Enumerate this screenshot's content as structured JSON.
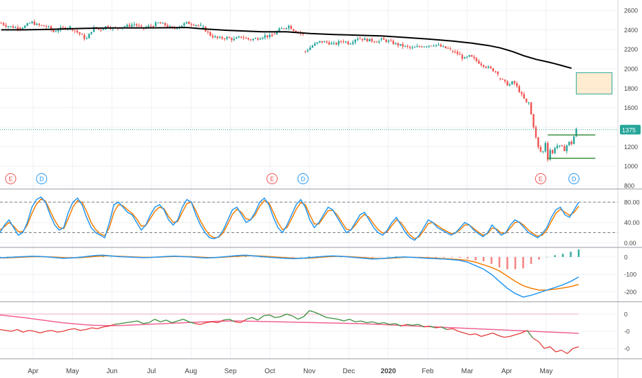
{
  "colors": {
    "up": "#26a69a",
    "down": "#ef5350",
    "ma": "#000000",
    "stoch_k": "#2196f3",
    "stoch_d": "#f57c00",
    "macd": "#2196f3",
    "signal": "#f57c00",
    "rel_up": "#388e3c",
    "rel_down": "#e53935",
    "rel_avg": "#f06292",
    "grid": "#eef0f4",
    "axis_text": "#444444",
    "price_tag": "#26a69a"
  },
  "chart_data": [
    {
      "type": "candlestick",
      "panel": "price",
      "ylim": [
        800,
        2650
      ],
      "yticks": [
        "2600",
        "2400",
        "2200",
        "2000",
        "1800",
        "1600",
        "1400",
        "1200",
        "1000",
        "800"
      ],
      "last_price_label": "1375",
      "last_price": 1375,
      "overlay_ma": [
        [
          0,
          2400
        ],
        [
          10,
          2400
        ],
        [
          20,
          2405
        ],
        [
          30,
          2412
        ],
        [
          40,
          2418
        ],
        [
          50,
          2420
        ],
        [
          60,
          2420
        ],
        [
          70,
          2421
        ],
        [
          78,
          2424
        ],
        [
          85,
          2410
        ],
        [
          95,
          2395
        ],
        [
          110,
          2380
        ],
        [
          120,
          2380
        ],
        [
          130,
          2362
        ],
        [
          140,
          2352
        ],
        [
          150,
          2345
        ],
        [
          160,
          2337
        ],
        [
          170,
          2322
        ],
        [
          180,
          2305
        ],
        [
          190,
          2285
        ],
        [
          198,
          2264
        ],
        [
          205,
          2239
        ],
        [
          210,
          2214
        ],
        [
          215,
          2178
        ],
        [
          220,
          2133
        ],
        [
          225,
          2097
        ],
        [
          230,
          2070
        ],
        [
          233,
          2052
        ],
        [
          236,
          2032
        ],
        [
          240,
          2005
        ]
      ],
      "ohlc_segments": [
        {
          "from": 0,
          "to": 8,
          "trend": [
            2470,
            2440,
            2430,
            2420
          ]
        },
        {
          "from": 8,
          "to": 30,
          "trend": [
            2420,
            2440,
            2480,
            2450,
            2440,
            2430,
            2380,
            2410,
            2420,
            2430
          ]
        },
        {
          "from": 30,
          "to": 60,
          "trend": [
            2410,
            2360,
            2300,
            2420,
            2400,
            2440,
            2410,
            2430,
            2440,
            2460,
            2420
          ]
        },
        {
          "from": 60,
          "to": 85,
          "trend": [
            2420,
            2440,
            2470,
            2450,
            2410,
            2440,
            2470,
            2460,
            2440
          ]
        },
        {
          "from": 85,
          "to": 115,
          "trend": [
            2420,
            2340,
            2310,
            2320,
            2300,
            2330,
            2300,
            2310,
            2340,
            2330
          ]
        },
        {
          "from": 115,
          "to": 128,
          "trend": [
            2360,
            2400,
            2420,
            2440,
            2400,
            2380,
            2350
          ]
        },
        {
          "from": 128,
          "to": 160,
          "trend": [
            2180,
            2240,
            2280,
            2270,
            2250,
            2290,
            2260,
            2320,
            2300,
            2290,
            2280
          ]
        },
        {
          "from": 160,
          "to": 190,
          "trend": [
            2300,
            2280,
            2250,
            2230,
            2210,
            2230,
            2240,
            2250,
            2220,
            2200
          ]
        },
        {
          "from": 190,
          "to": 210,
          "trend": [
            2180,
            2150,
            2100,
            2130,
            2090,
            2050,
            2020,
            1990,
            1960
          ]
        },
        {
          "from": 210,
          "to": 222,
          "trend": [
            1900,
            1860,
            1830,
            1870,
            1800,
            1720,
            1650
          ]
        },
        {
          "from": 222,
          "to": 228,
          "trend": [
            1650,
            1500,
            1350,
            1200,
            1150
          ]
        },
        {
          "from": 228,
          "to": 243,
          "trend": [
            1150,
            1250,
            1050,
            1200,
            1100,
            1250,
            1180,
            1220,
            1150,
            1200,
            1250,
            1220,
            1300,
            1375
          ]
        }
      ],
      "earnings_markers": [
        {
          "label": "E",
          "bar": 4
        },
        {
          "label": "D",
          "bar": 17
        },
        {
          "label": "E",
          "bar": 114
        },
        {
          "label": "D",
          "bar": 127
        },
        {
          "label": "E",
          "bar": 227
        },
        {
          "label": "D",
          "bar": 241
        }
      ],
      "range_box": {
        "top": 1320,
        "bottom": 1080,
        "from_bar": 230,
        "to_bar": 250
      },
      "target_box": {
        "top": 1960,
        "bottom": 1740,
        "from_bar": 242,
        "to_bar": 257
      }
    },
    {
      "type": "line",
      "panel": "stochastic",
      "ylim": [
        -5,
        95
      ],
      "yticks": [
        "80.00",
        "40.00",
        "0.00"
      ],
      "levels": [
        80,
        20
      ],
      "series": [
        {
          "role": "k",
          "values": [
            20,
            35,
            45,
            30,
            15,
            20,
            40,
            70,
            85,
            90,
            80,
            55,
            35,
            25,
            30,
            60,
            80,
            88,
            75,
            50,
            30,
            20,
            15,
            10,
            40,
            75,
            80,
            70,
            60,
            55,
            40,
            25,
            35,
            55,
            70,
            75,
            65,
            45,
            35,
            45,
            70,
            85,
            80,
            55,
            35,
            20,
            10,
            8,
            12,
            25,
            45,
            65,
            70,
            55,
            40,
            45,
            60,
            80,
            88,
            75,
            50,
            30,
            20,
            35,
            55,
            75,
            85,
            70,
            45,
            30,
            40,
            55,
            70,
            65,
            50,
            35,
            20,
            25,
            40,
            55,
            60,
            45,
            30,
            20,
            15,
            25,
            40,
            50,
            35,
            20,
            10,
            5,
            15,
            30,
            45,
            40,
            30,
            25,
            20,
            15,
            20,
            30,
            40,
            35,
            25,
            18,
            12,
            20,
            35,
            25,
            15,
            20,
            35,
            45,
            40,
            30,
            20,
            15,
            10,
            18,
            30,
            50,
            65,
            70,
            55,
            50,
            65,
            80
          ]
        },
        {
          "role": "d",
          "values": [
            25,
            32,
            40,
            33,
            22,
            22,
            35,
            58,
            76,
            86,
            82,
            63,
            44,
            30,
            28,
            48,
            70,
            83,
            80,
            62,
            40,
            26,
            18,
            14,
            30,
            60,
            75,
            73,
            65,
            58,
            47,
            33,
            34,
            48,
            62,
            70,
            67,
            52,
            40,
            42,
            60,
            77,
            80,
            63,
            43,
            27,
            15,
            10,
            11,
            20,
            37,
            56,
            66,
            60,
            47,
            45,
            55,
            72,
            83,
            79,
            60,
            40,
            26,
            30,
            47,
            66,
            79,
            75,
            55,
            37,
            37,
            50,
            63,
            64,
            55,
            41,
            27,
            25,
            35,
            48,
            56,
            50,
            37,
            26,
            19,
            22,
            34,
            45,
            40,
            27,
            15,
            8,
            12,
            24,
            38,
            40,
            34,
            28,
            23,
            18,
            19,
            26,
            35,
            35,
            28,
            21,
            15,
            18,
            29,
            27,
            19,
            19,
            29,
            40,
            41,
            34,
            25,
            18,
            13,
            15,
            25,
            42,
            58,
            66,
            60,
            54,
            60,
            72
          ]
        }
      ]
    },
    {
      "type": "line",
      "panel": "macd",
      "ylim": [
        -245,
        35
      ],
      "yticks": [
        "0",
        "-100",
        "-200"
      ],
      "series": [
        {
          "role": "macd",
          "values": [
            -5,
            -3,
            0,
            2,
            4,
            3,
            0,
            -4,
            -8,
            -6,
            -2,
            3,
            8,
            10,
            6,
            2,
            0,
            -2,
            -4,
            -3,
            0,
            3,
            5,
            2,
            0,
            -3,
            -6,
            -4,
            0,
            4,
            8,
            10,
            6,
            2,
            -2,
            -5,
            -8,
            -10,
            -8,
            -4,
            0,
            4,
            6,
            4,
            0,
            -4,
            -8,
            -12,
            -10,
            -6,
            -2,
            0,
            -2,
            -5,
            -8,
            -10,
            -12,
            -15,
            -20,
            -30,
            -50,
            -70,
            -100,
            -140,
            -180,
            -210,
            -230,
            -220,
            -205,
            -190,
            -175,
            -160,
            -140,
            -115
          ]
        },
        {
          "role": "signal",
          "values": [
            -6,
            -5,
            -3,
            -1,
            1,
            2,
            1,
            -1,
            -4,
            -5,
            -4,
            -1,
            3,
            6,
            6,
            4,
            2,
            0,
            -2,
            -2,
            -1,
            1,
            3,
            3,
            2,
            0,
            -3,
            -4,
            -2,
            1,
            4,
            7,
            7,
            5,
            2,
            -1,
            -4,
            -7,
            -8,
            -7,
            -4,
            0,
            3,
            4,
            2,
            -1,
            -4,
            -8,
            -9,
            -8,
            -5,
            -2,
            -2,
            -3,
            -5,
            -7,
            -9,
            -12,
            -15,
            -20,
            -30,
            -45,
            -60,
            -80,
            -110,
            -140,
            -165,
            -180,
            -190,
            -190,
            -185,
            -178,
            -170,
            -158
          ]
        }
      ],
      "histogram": [
        1,
        2,
        3,
        3,
        3,
        1,
        -1,
        -3,
        -4,
        -1,
        2,
        4,
        5,
        4,
        0,
        -2,
        -2,
        -2,
        -2,
        -1,
        1,
        2,
        2,
        -1,
        -2,
        -3,
        -3,
        0,
        2,
        3,
        4,
        3,
        -1,
        -3,
        -4,
        -4,
        -4,
        -3,
        0,
        3,
        4,
        4,
        3,
        0,
        -2,
        -3,
        -4,
        -4,
        -1,
        2,
        3,
        2,
        0,
        -2,
        -3,
        -3,
        -3,
        -3,
        -5,
        -10,
        -20,
        -25,
        -40,
        -60,
        -70,
        -70,
        -65,
        -40,
        -15,
        0,
        10,
        18,
        30,
        43
      ]
    },
    {
      "type": "line",
      "panel": "relative",
      "ylim": [
        -2.6,
        0.6
      ],
      "yticks": [
        "0",
        "-0",
        "-0"
      ],
      "series": [
        {
          "role": "relative",
          "values": [
            -0.9,
            -0.95,
            -1.0,
            -0.9,
            -1.05,
            -0.95,
            -1.0,
            -1.1,
            -1.0,
            -0.95,
            -1.05,
            -1.0,
            -0.9,
            -0.85,
            -0.95,
            -0.9,
            -0.8,
            -0.85,
            -0.75,
            -0.7,
            -0.6,
            -0.55,
            -0.5,
            -0.45,
            -0.4,
            -0.55,
            -0.5,
            -0.3,
            -0.45,
            -0.35,
            -0.5,
            -0.4,
            -0.3,
            -0.45,
            -0.55,
            -0.6,
            -0.5,
            -0.45,
            -0.5,
            -0.35,
            -0.3,
            -0.45,
            -0.5,
            -0.3,
            -0.2,
            -0.35,
            -0.1,
            -0.05,
            -0.2,
            -0.15,
            0.0,
            -0.1,
            -0.3,
            -0.15,
            0.2,
            0.1,
            -0.05,
            -0.2,
            -0.25,
            -0.3,
            -0.4,
            -0.3,
            -0.45,
            -0.4,
            -0.5,
            -0.45,
            -0.55,
            -0.5,
            -0.6,
            -0.55,
            -0.7,
            -0.6,
            -0.65,
            -0.6,
            -0.75,
            -0.7,
            -0.8,
            -0.75,
            -0.9,
            -0.85,
            -1.0,
            -1.1,
            -1.2,
            -1.15,
            -1.3,
            -1.2,
            -1.1,
            -1.25,
            -1.35,
            -1.3,
            -1.2,
            -1.1,
            -0.95,
            -1.4,
            -1.6,
            -2.0,
            -1.9,
            -2.2,
            -2.1,
            -2.3,
            -2.0,
            -1.9
          ]
        },
        {
          "role": "average",
          "values": [
            -0.05,
            -0.1,
            -0.15,
            -0.2,
            -0.26,
            -0.32,
            -0.38,
            -0.44,
            -0.5,
            -0.54,
            -0.58,
            -0.62,
            -0.65,
            -0.66,
            -0.67,
            -0.67,
            -0.66,
            -0.64,
            -0.62,
            -0.6,
            -0.58,
            -0.56,
            -0.54,
            -0.52,
            -0.5,
            -0.48,
            -0.46,
            -0.44,
            -0.42,
            -0.41,
            -0.4,
            -0.4,
            -0.41,
            -0.42,
            -0.43,
            -0.44,
            -0.45,
            -0.46,
            -0.47,
            -0.48,
            -0.49,
            -0.5,
            -0.51,
            -0.52,
            -0.53,
            -0.54,
            -0.55,
            -0.56,
            -0.58,
            -0.6,
            -0.62,
            -0.64,
            -0.66,
            -0.68,
            -0.7,
            -0.72,
            -0.74,
            -0.76,
            -0.78,
            -0.8,
            -0.82,
            -0.84,
            -0.86,
            -0.88,
            -0.9,
            -0.92,
            -0.94,
            -0.96,
            -0.98,
            -1.0,
            -1.02,
            -1.04,
            -1.06,
            -1.08,
            -1.1,
            -1.12
          ]
        }
      ]
    }
  ],
  "x_axis": {
    "labels": [
      "Apr",
      "May",
      "Jun",
      "Jul",
      "Aug",
      "Sep",
      "Oct",
      "Nov",
      "Dec",
      "2020",
      "Feb",
      "Mar",
      "Apr",
      "May"
    ],
    "bold": "2020"
  }
}
